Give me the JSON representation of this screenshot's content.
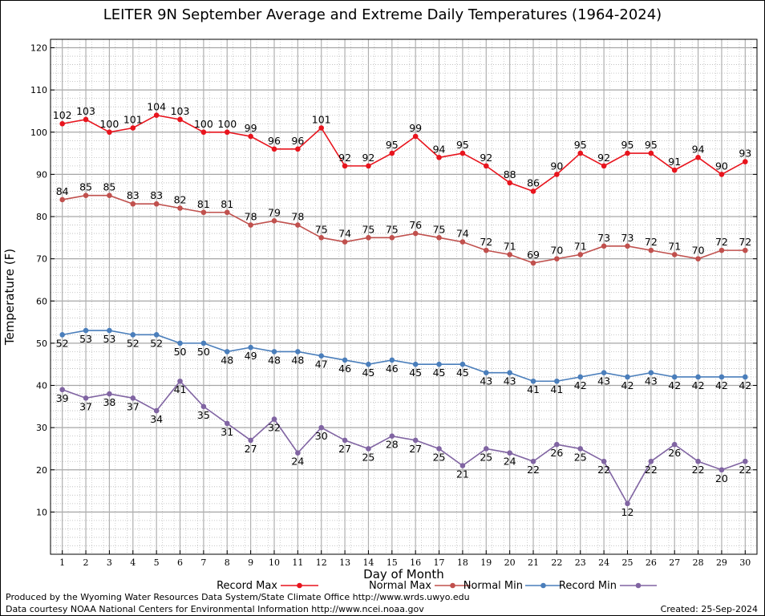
{
  "chart_data": {
    "type": "line",
    "title": "LEITER 9N September Average and Extreme Daily Temperatures (1964-2024)",
    "xlabel": "Day of Month",
    "ylabel": "Temperature (F)",
    "xlim": [
      0.5,
      30.5
    ],
    "ylim": [
      0,
      122
    ],
    "yticks": [
      10,
      20,
      30,
      40,
      50,
      60,
      70,
      80,
      90,
      100,
      110,
      120
    ],
    "x": [
      1,
      2,
      3,
      4,
      5,
      6,
      7,
      8,
      9,
      10,
      11,
      12,
      13,
      14,
      15,
      16,
      17,
      18,
      19,
      20,
      21,
      22,
      23,
      24,
      25,
      26,
      27,
      28,
      29,
      30
    ],
    "grid": true,
    "legend_position": "bottom",
    "series": [
      {
        "name": "Record Max",
        "color": "#e8141d",
        "label_side": "above",
        "values": [
          102,
          103,
          100,
          101,
          104,
          103,
          100,
          100,
          99,
          96,
          96,
          101,
          92,
          92,
          95,
          99,
          94,
          95,
          92,
          88,
          86,
          90,
          95,
          92,
          95,
          95,
          91,
          94,
          90,
          93
        ]
      },
      {
        "name": "Normal Max",
        "color": "#c0504d",
        "label_side": "above",
        "values": [
          84,
          85,
          85,
          83,
          83,
          82,
          81,
          81,
          78,
          79,
          78,
          75,
          74,
          75,
          75,
          76,
          75,
          74,
          72,
          71,
          69,
          70,
          71,
          73,
          73,
          72,
          71,
          70,
          72,
          72
        ]
      },
      {
        "name": "Normal Min",
        "color": "#4a7ebb",
        "label_side": "below",
        "values": [
          52,
          53,
          53,
          52,
          52,
          50,
          50,
          48,
          49,
          48,
          48,
          47,
          46,
          45,
          46,
          45,
          45,
          45,
          43,
          43,
          41,
          41,
          42,
          43,
          42,
          43,
          42,
          42,
          42,
          42
        ]
      },
      {
        "name": "Record Min",
        "color": "#8064a2",
        "label_side": "below",
        "values": [
          39,
          37,
          38,
          37,
          34,
          41,
          35,
          31,
          27,
          32,
          24,
          30,
          27,
          25,
          28,
          27,
          25,
          21,
          25,
          24,
          22,
          26,
          25,
          22,
          12,
          22,
          26,
          22,
          20,
          22
        ]
      }
    ]
  },
  "footer": {
    "produced_by": "Produced by the Wyoming Water Resources Data System/State Climate Office http://www.wrds.uwyo.edu",
    "courtesy": "Data courtesy NOAA National Centers for Environmental Information http://www.ncei.noaa.gov",
    "created": "Created:  25-Sep-2024"
  }
}
